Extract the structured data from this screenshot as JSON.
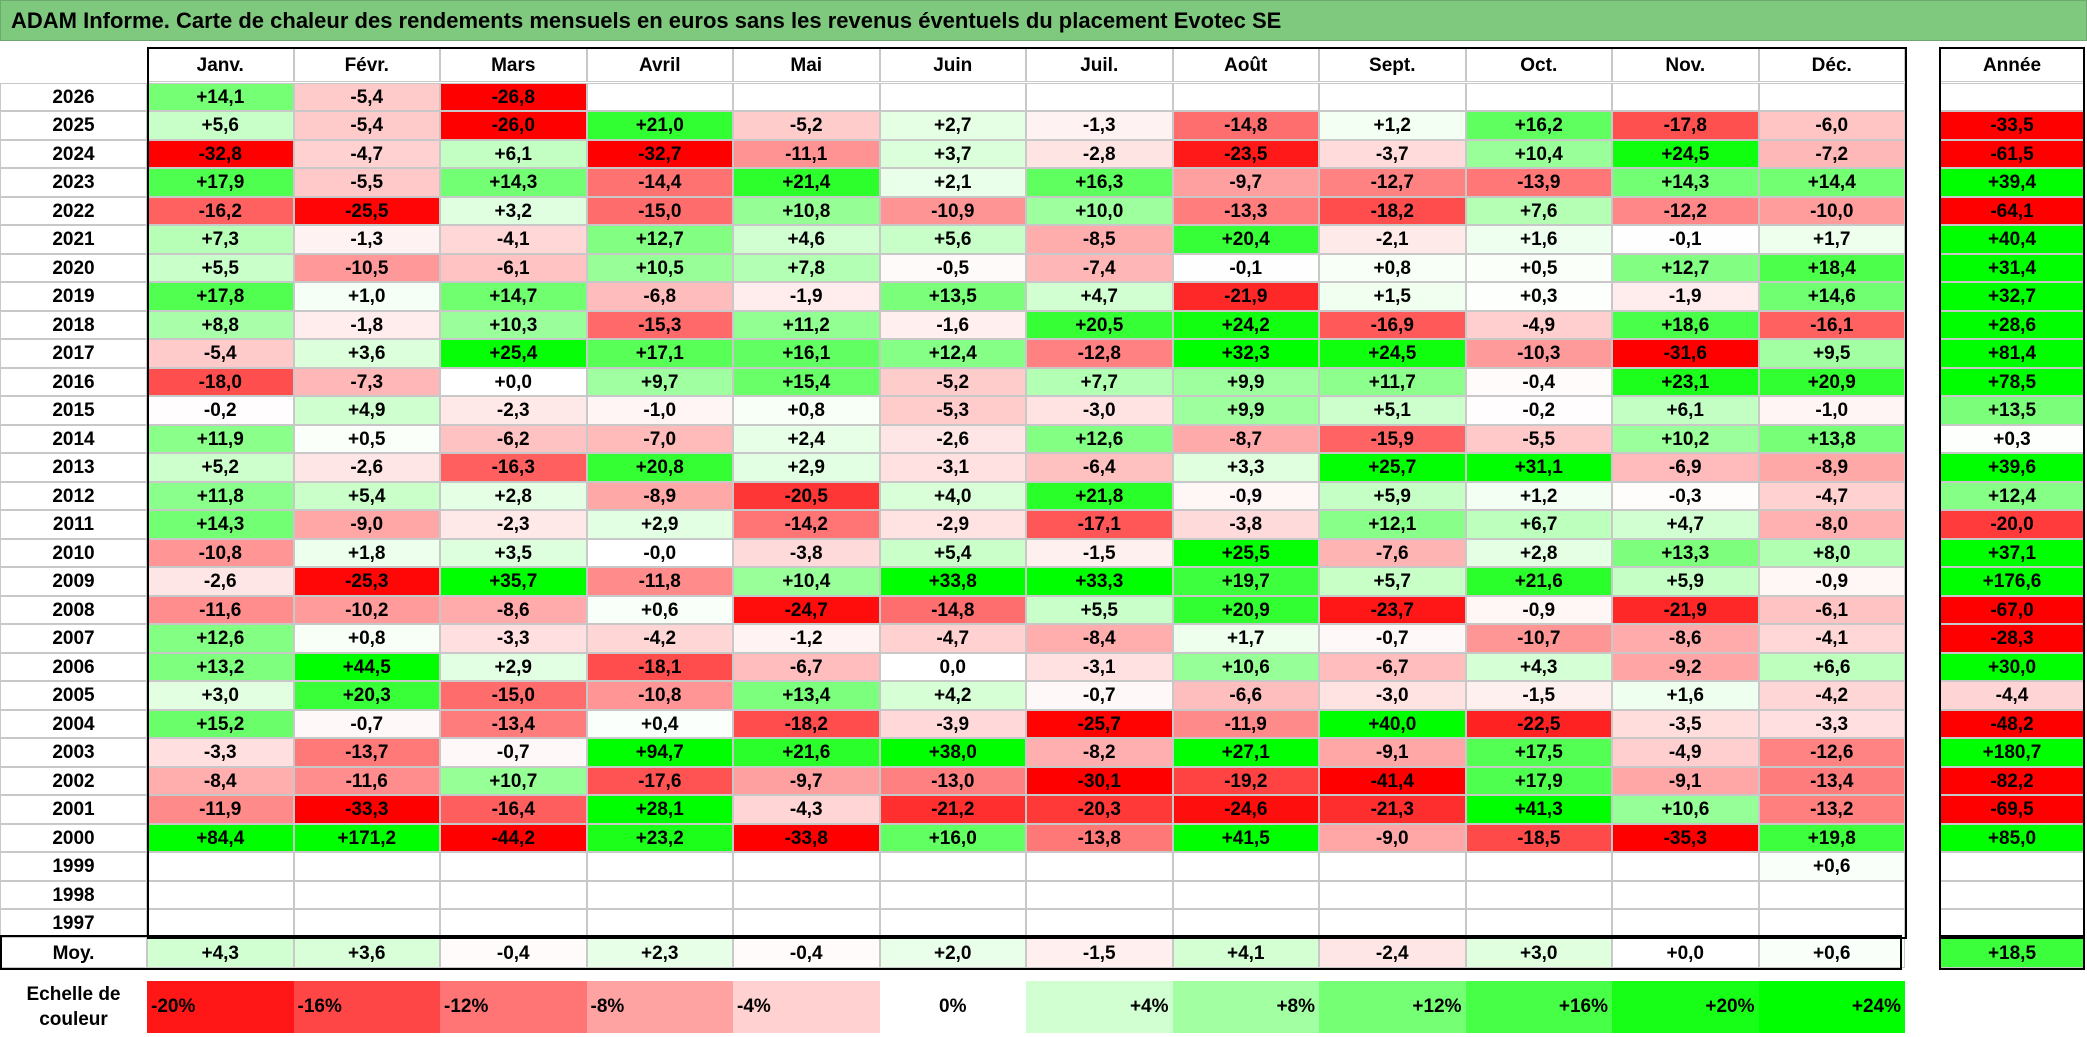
{
  "title": "ADAM Informe. Carte de chaleur des rendements mensuels en euros sans les revenus éventuels du placement Evotec SE",
  "chart_data": {
    "type": "heatmap",
    "title": "ADAM Informe. Carte de chaleur des rendements mensuels en euros sans les revenus éventuels du placement Evotec SE",
    "months": [
      "Janv.",
      "Févr.",
      "Mars",
      "Avril",
      "Mai",
      "Juin",
      "Juil.",
      "Août",
      "Sept.",
      "Oct.",
      "Nov.",
      "Déc."
    ],
    "year_header": "Année",
    "rows": [
      {
        "year": "2026",
        "values": [
          "+14,1",
          "-5,4",
          "-26,8",
          "",
          "",
          "",
          "",
          "",
          "",
          "",
          "",
          ""
        ],
        "annual": ""
      },
      {
        "year": "2025",
        "values": [
          "+5,6",
          "-5,4",
          "-26,0",
          "+21,0",
          "-5,2",
          "+2,7",
          "-1,3",
          "-14,8",
          "+1,2",
          "+16,2",
          "-17,8",
          "-6,0"
        ],
        "annual": "-33,5"
      },
      {
        "year": "2024",
        "values": [
          "-32,8",
          "-4,7",
          "+6,1",
          "-32,7",
          "-11,1",
          "+3,7",
          "-2,8",
          "-23,5",
          "-3,7",
          "+10,4",
          "+24,5",
          "-7,2"
        ],
        "annual": "-61,5"
      },
      {
        "year": "2023",
        "values": [
          "+17,9",
          "-5,5",
          "+14,3",
          "-14,4",
          "+21,4",
          "+2,1",
          "+16,3",
          "-9,7",
          "-12,7",
          "-13,9",
          "+14,3",
          "+14,4"
        ],
        "annual": "+39,4"
      },
      {
        "year": "2022",
        "values": [
          "-16,2",
          "-25,5",
          "+3,2",
          "-15,0",
          "+10,8",
          "-10,9",
          "+10,0",
          "-13,3",
          "-18,2",
          "+7,6",
          "-12,2",
          "-10,0"
        ],
        "annual": "-64,1"
      },
      {
        "year": "2021",
        "values": [
          "+7,3",
          "-1,3",
          "-4,1",
          "+12,7",
          "+4,6",
          "+5,6",
          "-8,5",
          "+20,4",
          "-2,1",
          "+1,6",
          "-0,1",
          "+1,7"
        ],
        "annual": "+40,4"
      },
      {
        "year": "2020",
        "values": [
          "+5,5",
          "-10,5",
          "-6,1",
          "+10,5",
          "+7,8",
          "-0,5",
          "-7,4",
          "-0,1",
          "+0,8",
          "+0,5",
          "+12,7",
          "+18,4"
        ],
        "annual": "+31,4"
      },
      {
        "year": "2019",
        "values": [
          "+17,8",
          "+1,0",
          "+14,7",
          "-6,8",
          "-1,9",
          "+13,5",
          "+4,7",
          "-21,9",
          "+1,5",
          "+0,3",
          "-1,9",
          "+14,6"
        ],
        "annual": "+32,7"
      },
      {
        "year": "2018",
        "values": [
          "+8,8",
          "-1,8",
          "+10,3",
          "-15,3",
          "+11,2",
          "-1,6",
          "+20,5",
          "+24,2",
          "-16,9",
          "-4,9",
          "+18,6",
          "-16,1"
        ],
        "annual": "+28,6"
      },
      {
        "year": "2017",
        "values": [
          "-5,4",
          "+3,6",
          "+25,4",
          "+17,1",
          "+16,1",
          "+12,4",
          "-12,8",
          "+32,3",
          "+24,5",
          "-10,3",
          "-31,6",
          "+9,5"
        ],
        "annual": "+81,4"
      },
      {
        "year": "2016",
        "values": [
          "-18,0",
          "-7,3",
          "+0,0",
          "+9,7",
          "+15,4",
          "-5,2",
          "+7,7",
          "+9,9",
          "+11,7",
          "-0,4",
          "+23,1",
          "+20,9"
        ],
        "annual": "+78,5"
      },
      {
        "year": "2015",
        "values": [
          "-0,2",
          "+4,9",
          "-2,3",
          "-1,0",
          "+0,8",
          "-5,3",
          "-3,0",
          "+9,9",
          "+5,1",
          "-0,2",
          "+6,1",
          "-1,0"
        ],
        "annual": "+13,5"
      },
      {
        "year": "2014",
        "values": [
          "+11,9",
          "+0,5",
          "-6,2",
          "-7,0",
          "+2,4",
          "-2,6",
          "+12,6",
          "-8,7",
          "-15,9",
          "-5,5",
          "+10,2",
          "+13,8"
        ],
        "annual": "+0,3"
      },
      {
        "year": "2013",
        "values": [
          "+5,2",
          "-2,6",
          "-16,3",
          "+20,8",
          "+2,9",
          "-3,1",
          "-6,4",
          "+3,3",
          "+25,7",
          "+31,1",
          "-6,9",
          "-8,9"
        ],
        "annual": "+39,6"
      },
      {
        "year": "2012",
        "values": [
          "+11,8",
          "+5,4",
          "+2,8",
          "-8,9",
          "-20,5",
          "+4,0",
          "+21,8",
          "-0,9",
          "+5,9",
          "+1,2",
          "-0,3",
          "-4,7"
        ],
        "annual": "+12,4"
      },
      {
        "year": "2011",
        "values": [
          "+14,3",
          "-9,0",
          "-2,3",
          "+2,9",
          "-14,2",
          "-2,9",
          "-17,1",
          "-3,8",
          "+12,1",
          "+6,7",
          "+4,7",
          "-8,0"
        ],
        "annual": "-20,0"
      },
      {
        "year": "2010",
        "values": [
          "-10,8",
          "+1,8",
          "+3,5",
          "-0,0",
          "-3,8",
          "+5,4",
          "-1,5",
          "+25,5",
          "-7,6",
          "+2,8",
          "+13,3",
          "+8,0"
        ],
        "annual": "+37,1"
      },
      {
        "year": "2009",
        "values": [
          "-2,6",
          "-25,3",
          "+35,7",
          "-11,8",
          "+10,4",
          "+33,8",
          "+33,3",
          "+19,7",
          "+5,7",
          "+21,6",
          "+5,9",
          "-0,9"
        ],
        "annual": "+176,6"
      },
      {
        "year": "2008",
        "values": [
          "-11,6",
          "-10,2",
          "-8,6",
          "+0,6",
          "-24,7",
          "-14,8",
          "+5,5",
          "+20,9",
          "-23,7",
          "-0,9",
          "-21,9",
          "-6,1"
        ],
        "annual": "-67,0"
      },
      {
        "year": "2007",
        "values": [
          "+12,6",
          "+0,8",
          "-3,3",
          "-4,2",
          "-1,2",
          "-4,7",
          "-8,4",
          "+1,7",
          "-0,7",
          "-10,7",
          "-8,6",
          "-4,1"
        ],
        "annual": "-28,3"
      },
      {
        "year": "2006",
        "values": [
          "+13,2",
          "+44,5",
          "+2,9",
          "-18,1",
          "-6,7",
          "0,0",
          "-3,1",
          "+10,6",
          "-6,7",
          "+4,3",
          "-9,2",
          "+6,6"
        ],
        "annual": "+30,0"
      },
      {
        "year": "2005",
        "values": [
          "+3,0",
          "+20,3",
          "-15,0",
          "-10,8",
          "+13,4",
          "+4,2",
          "-0,7",
          "-6,6",
          "-3,0",
          "-1,5",
          "+1,6",
          "-4,2"
        ],
        "annual": "-4,4"
      },
      {
        "year": "2004",
        "values": [
          "+15,2",
          "-0,7",
          "-13,4",
          "+0,4",
          "-18,2",
          "-3,9",
          "-25,7",
          "-11,9",
          "+40,0",
          "-22,5",
          "-3,5",
          "-3,3"
        ],
        "annual": "-48,2"
      },
      {
        "year": "2003",
        "values": [
          "-3,3",
          "-13,7",
          "-0,7",
          "+94,7",
          "+21,6",
          "+38,0",
          "-8,2",
          "+27,1",
          "-9,1",
          "+17,5",
          "-4,9",
          "-12,6"
        ],
        "annual": "+180,7"
      },
      {
        "year": "2002",
        "values": [
          "-8,4",
          "-11,6",
          "+10,7",
          "-17,6",
          "-9,7",
          "-13,0",
          "-30,1",
          "-19,2",
          "-41,4",
          "+17,9",
          "-9,1",
          "-13,4"
        ],
        "annual": "-82,2"
      },
      {
        "year": "2001",
        "values": [
          "-11,9",
          "-33,3",
          "-16,4",
          "+28,1",
          "-4,3",
          "-21,2",
          "-20,3",
          "-24,6",
          "-21,3",
          "+41,3",
          "+10,6",
          "-13,2"
        ],
        "annual": "-69,5"
      },
      {
        "year": "2000",
        "values": [
          "+84,4",
          "+171,2",
          "-44,2",
          "+23,2",
          "-33,8",
          "+16,0",
          "-13,8",
          "+41,5",
          "-9,0",
          "-18,5",
          "-35,3",
          "+19,8"
        ],
        "annual": "+85,0"
      },
      {
        "year": "1999",
        "values": [
          "",
          "",
          "",
          "",
          "",
          "",
          "",
          "",
          "",
          "",
          "",
          "+0,6"
        ],
        "annual": ""
      },
      {
        "year": "1998",
        "values": [
          "",
          "",
          "",
          "",
          "",
          "",
          "",
          "",
          "",
          "",
          "",
          ""
        ],
        "annual": ""
      },
      {
        "year": "1997",
        "values": [
          "",
          "",
          "",
          "",
          "",
          "",
          "",
          "",
          "",
          "",
          "",
          ""
        ],
        "annual": ""
      }
    ],
    "average": {
      "label": "Moy.",
      "values": [
        "+4,3",
        "+3,6",
        "-0,4",
        "+2,3",
        "-0,4",
        "+2,0",
        "-1,5",
        "+4,1",
        "-2,4",
        "+3,0",
        "+0,0",
        "+0,6"
      ],
      "annual": "+18,5"
    },
    "color_scale": {
      "label_line1": "Echelle de",
      "label_line2": "couleur",
      "stops": [
        "-20%",
        "-16%",
        "-12%",
        "-8%",
        "-4%",
        "0%",
        "+4%",
        "+8%",
        "+12%",
        "+16%",
        "+20%",
        "+24%"
      ],
      "stop_values": [
        -20,
        -16,
        -12,
        -8,
        -4,
        0,
        4,
        8,
        12,
        16,
        20,
        24
      ]
    },
    "colors": {
      "neg_max": "#ff0000",
      "neutral": "#ffffff",
      "pos_max": "#00ff00",
      "grid_line": "#c8c8c8",
      "title_bg": "#7fc97f"
    }
  }
}
